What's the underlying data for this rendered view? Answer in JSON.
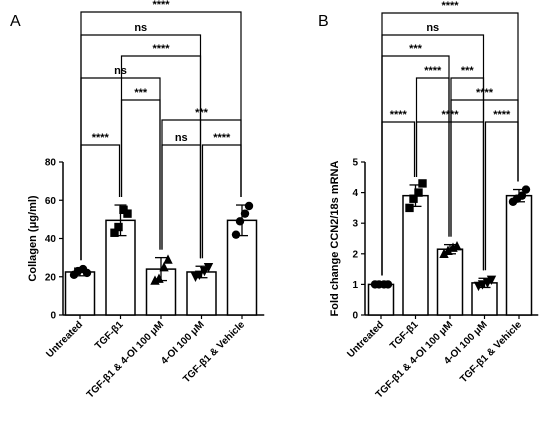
{
  "chart_data": [
    {
      "type": "bar",
      "panel_label": "A",
      "ylabel": "Collagen (μg/ml)",
      "ylim": [
        0,
        80
      ],
      "yticks": [
        "0",
        "20",
        "40",
        "60",
        "80"
      ],
      "categories": [
        "Untreated",
        "TGF-β1",
        "TGF-β1 & 4-OI 100 μM",
        "4-OI 100 μM",
        "TGF-β1 & Vehicle"
      ],
      "values": [
        22.5,
        49.5,
        24,
        22.5,
        49.5
      ],
      "errors": [
        2,
        8,
        6,
        3,
        8
      ],
      "points": [
        [
          21,
          23,
          24,
          22
        ],
        [
          43,
          46,
          55,
          53
        ],
        [
          18,
          19,
          25,
          29
        ],
        [
          20,
          21,
          23,
          25
        ],
        [
          42,
          49,
          53,
          57
        ]
      ],
      "markers": [
        "circle",
        "square",
        "triangle",
        "triangle-down",
        "circle"
      ],
      "grid": false,
      "comparisons": [
        {
          "a": 0,
          "b": 4,
          "label": "****"
        },
        {
          "a": 0,
          "b": 3,
          "label": "ns"
        },
        {
          "a": 1,
          "b": 3,
          "label": "****"
        },
        {
          "a": 0,
          "b": 2,
          "label": "ns"
        },
        {
          "a": 1,
          "b": 2,
          "label": "***"
        },
        {
          "a": 2,
          "b": 4,
          "label": "***"
        },
        {
          "a": 0,
          "b": 1,
          "label": "****"
        },
        {
          "a": 2,
          "b": 3,
          "label": "ns"
        },
        {
          "a": 3,
          "b": 4,
          "label": "****"
        }
      ]
    },
    {
      "type": "bar",
      "panel_label": "B",
      "ylabel": "Fold change CCN2/18s mRNA",
      "ylim": [
        0,
        5
      ],
      "yticks": [
        "0",
        "1",
        "2",
        "3",
        "4",
        "5"
      ],
      "categories": [
        "Untreated",
        "TGF-β1",
        "TGF-β1 & 4-OI 100 μM",
        "4-OI 100 μM",
        "TGF-β1 & Vehicle"
      ],
      "values": [
        1.0,
        3.9,
        2.15,
        1.05,
        3.9
      ],
      "errors": [
        0.03,
        0.35,
        0.15,
        0.15,
        0.2
      ],
      "points": [
        [
          1.0,
          1.0,
          1.0,
          1.0
        ],
        [
          3.5,
          3.8,
          4.0,
          4.3
        ],
        [
          2.0,
          2.1,
          2.2,
          2.25
        ],
        [
          0.95,
          1.0,
          1.05,
          1.15
        ],
        [
          3.7,
          3.8,
          3.9,
          4.1
        ]
      ],
      "markers": [
        "circle",
        "square",
        "triangle",
        "triangle-down",
        "circle"
      ],
      "grid": false,
      "comparisons": [
        {
          "a": 0,
          "b": 4,
          "label": "****"
        },
        {
          "a": 0,
          "b": 3,
          "label": "ns"
        },
        {
          "a": 0,
          "b": 2,
          "label": "***"
        },
        {
          "a": 2,
          "b": 3,
          "label": "***"
        },
        {
          "a": 1,
          "b": 2,
          "label": "****"
        },
        {
          "a": 2,
          "b": 4,
          "label": "****"
        },
        {
          "a": 0,
          "b": 1,
          "label": "****"
        },
        {
          "a": 1,
          "b": 3,
          "label": "****"
        },
        {
          "a": 3,
          "b": 4,
          "label": "****"
        }
      ]
    }
  ]
}
